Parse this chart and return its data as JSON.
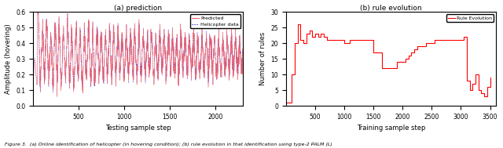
{
  "left_plot": {
    "title": "(a) prediction",
    "xlabel": "Testing sample step",
    "ylabel": "Amplitude (hovering)",
    "xlim": [
      0,
      2300
    ],
    "ylim": [
      0,
      0.6
    ],
    "yticks": [
      0,
      0.1,
      0.2,
      0.3,
      0.4,
      0.5,
      0.6
    ],
    "xticks": [
      500,
      1000,
      1500,
      2000
    ],
    "legend": [
      "Predicted",
      "Helicopter data"
    ],
    "predicted_color": "#FF6B6B",
    "helicopter_color": "#0000CC",
    "num_points": 2300
  },
  "right_plot": {
    "title": "(b) rule evolution",
    "xlabel": "Training sample step",
    "ylabel": "Number of rules",
    "xlim": [
      0,
      3600
    ],
    "ylim": [
      0,
      30
    ],
    "yticks": [
      0,
      5,
      10,
      15,
      20,
      25,
      30
    ],
    "xticks": [
      500,
      1000,
      1500,
      2000,
      2500,
      3000,
      3500
    ],
    "legend": [
      "Rule Evolution"
    ],
    "line_color": "#FF0000",
    "rule_x": [
      0,
      100,
      150,
      200,
      250,
      300,
      350,
      400,
      450,
      500,
      550,
      600,
      650,
      700,
      750,
      800,
      850,
      900,
      950,
      1000,
      1050,
      1100,
      1150,
      1200,
      1250,
      1300,
      1350,
      1400,
      1450,
      1500,
      1550,
      1600,
      1650,
      1700,
      1750,
      1800,
      1850,
      1900,
      1950,
      2000,
      2050,
      2100,
      2150,
      2200,
      2250,
      2300,
      2350,
      2400,
      2450,
      2500,
      2550,
      2600,
      2650,
      2700,
      2750,
      2800,
      2850,
      2900,
      2950,
      3000,
      3050,
      3100,
      3150,
      3200,
      3250,
      3300,
      3350,
      3400,
      3450,
      3500
    ],
    "rule_y": [
      1,
      10,
      20,
      26,
      21,
      20,
      23,
      24,
      22,
      23,
      22,
      23,
      22,
      21,
      21,
      21,
      21,
      21,
      21,
      20,
      20,
      21,
      21,
      21,
      21,
      21,
      21,
      21,
      21,
      17,
      17,
      17,
      12,
      12,
      12,
      12,
      12,
      14,
      14,
      14,
      15,
      16,
      17,
      18,
      19,
      19,
      19,
      20,
      20,
      20,
      21,
      21,
      21,
      21,
      21,
      21,
      21,
      21,
      21,
      21,
      22,
      8,
      5,
      7,
      10,
      5,
      4,
      3,
      6,
      9
    ]
  },
  "figure_caption": "Figure 3.  (a) Online identification of helicopter (in hovering condition); (b) rule evolution in that identification using type-2 PALM (L)",
  "background_color": "#FFFFFF"
}
